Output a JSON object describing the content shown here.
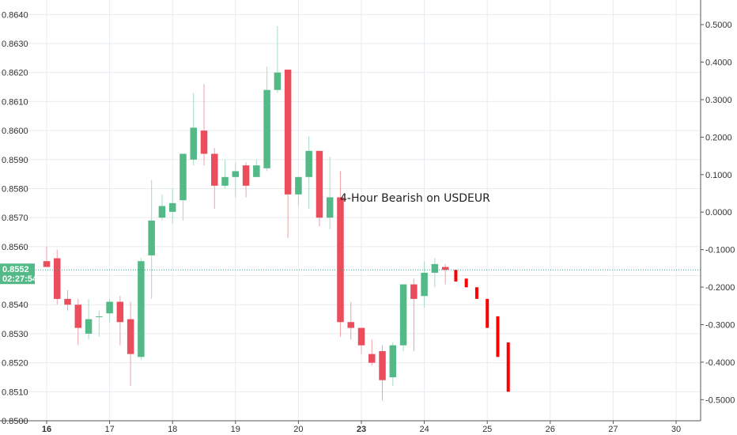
{
  "chart_data": {
    "type": "candlestick",
    "annotation": "4-Hour Bearish on USDEUR",
    "colors": {
      "up": "#53b987",
      "down": "#eb4d5c",
      "projection": "#ff0000",
      "grid": "#e6ecf0",
      "price_line": "#26a69a",
      "price_box": "#53b987"
    },
    "x_axis": {
      "ticks": [
        {
          "label": "16",
          "bold": true
        },
        {
          "label": "17",
          "bold": false
        },
        {
          "label": "18",
          "bold": false
        },
        {
          "label": "19",
          "bold": false
        },
        {
          "label": "20",
          "bold": false
        },
        {
          "label": "23",
          "bold": true
        },
        {
          "label": "24",
          "bold": false
        },
        {
          "label": "25",
          "bold": false
        },
        {
          "label": "26",
          "bold": false
        },
        {
          "label": "27",
          "bold": false
        },
        {
          "label": "30",
          "bold": false
        }
      ],
      "bars_per_day": 6
    },
    "y_left": {
      "range": [
        0.85,
        0.8645
      ],
      "ticks": [
        "0.8500",
        "0.8510",
        "0.8520",
        "0.8530",
        "0.8540",
        "0.8550",
        "0.8560",
        "0.8570",
        "0.8580",
        "0.8590",
        "0.8600",
        "0.8610",
        "0.8620",
        "0.8630",
        "0.8640"
      ]
    },
    "y_right": {
      "range": [
        -0.5563,
        0.5656
      ],
      "ticks": [
        "-0.5000",
        "-0.4000",
        "-0.3000",
        "-0.2000",
        "-0.1000",
        "0.0000",
        "0.1000",
        "0.2000",
        "0.3000",
        "0.4000",
        "0.5000"
      ]
    },
    "last_price": {
      "value": 0.8552,
      "label": "0.8552",
      "countdown": "02:27:54"
    },
    "candles": [
      [
        0.8555,
        0.856,
        0.8554,
        0.8553
      ],
      [
        0.8556,
        0.8559,
        0.854,
        0.8542
      ],
      [
        0.8542,
        0.8545,
        0.8538,
        0.854
      ],
      [
        0.854,
        0.8542,
        0.8526,
        0.8532
      ],
      [
        0.853,
        0.8542,
        0.8528,
        0.8535
      ],
      [
        0.8536,
        0.8538,
        0.8529,
        0.8536
      ],
      [
        0.8537,
        0.8542,
        0.8534,
        0.8541
      ],
      [
        0.8541,
        0.8543,
        0.8526,
        0.8534
      ],
      [
        0.8535,
        0.8541,
        0.8512,
        0.8523
      ],
      [
        0.8522,
        0.8556,
        0.8521,
        0.8555
      ],
      [
        0.8557,
        0.8583,
        0.8542,
        0.8569
      ],
      [
        0.857,
        0.8578,
        0.8569,
        0.8574
      ],
      [
        0.8572,
        0.858,
        0.8568,
        0.8575
      ],
      [
        0.8576,
        0.8592,
        0.8569,
        0.8592
      ],
      [
        0.859,
        0.8613,
        0.8588,
        0.8601
      ],
      [
        0.86,
        0.8616,
        0.8588,
        0.8592
      ],
      [
        0.8592,
        0.8594,
        0.8573,
        0.8581
      ],
      [
        0.8581,
        0.859,
        0.858,
        0.8584
      ],
      [
        0.8584,
        0.8589,
        0.8577,
        0.8586
      ],
      [
        0.8588,
        0.8589,
        0.8577,
        0.8581
      ],
      [
        0.8584,
        0.859,
        0.8584,
        0.8588
      ],
      [
        0.8587,
        0.8622,
        0.8586,
        0.8614
      ],
      [
        0.8614,
        0.8636,
        0.8613,
        0.862
      ],
      [
        0.8621,
        0.8621,
        0.8563,
        0.8578
      ],
      [
        0.8578,
        0.8584,
        0.8574,
        0.8584
      ],
      [
        0.8584,
        0.8598,
        0.8573,
        0.8593
      ],
      [
        0.8593,
        0.8593,
        0.8567,
        0.857
      ],
      [
        0.857,
        0.8591,
        0.8566,
        0.8577
      ],
      [
        0.8577,
        0.8586,
        0.8529,
        0.8534
      ],
      [
        0.8534,
        0.8541,
        0.8528,
        0.8532
      ],
      [
        0.8532,
        0.8532,
        0.8523,
        0.8526
      ],
      [
        0.8523,
        0.8528,
        0.8519,
        0.852
      ],
      [
        0.8524,
        0.8526,
        0.8507,
        0.8514
      ],
      [
        0.8515,
        0.8527,
        0.8512,
        0.8526
      ],
      [
        0.8526,
        0.8547,
        0.8524,
        0.8547
      ],
      [
        0.8547,
        0.8549,
        0.8524,
        0.8542
      ],
      [
        0.8543,
        0.8555,
        0.8539,
        0.8551
      ],
      [
        0.8551,
        0.8556,
        0.8546,
        0.8554
      ],
      [
        0.8553,
        0.8554,
        0.8547,
        0.8552
      ]
    ],
    "projection": [
      [
        0.8552,
        0.8548
      ],
      [
        0.8549,
        0.8546
      ],
      [
        0.8546,
        0.8542
      ],
      [
        0.8542,
        0.8532
      ],
      [
        0.8536,
        0.8522
      ],
      [
        0.8527,
        0.851
      ]
    ]
  }
}
